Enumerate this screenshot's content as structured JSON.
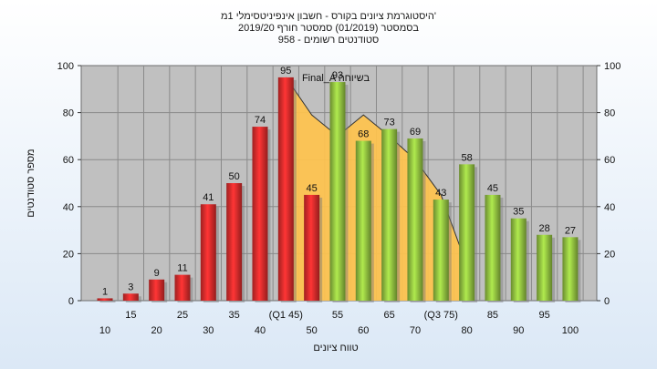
{
  "chart_data": {
    "type": "bar",
    "title_lines": [
      "היסטוגרמת ציונים בקורס - חשבון אינפיניטסימלי 1מ'",
      "בסמסטר  (01/2019)  סמסטר חורף 2019/20",
      "958 - סטודנטים רשומים"
    ],
    "ylabel": "מספר סטודנטים",
    "xlabel": "טווח ציונים",
    "ylim": [
      0,
      100
    ],
    "y_ticks": [
      0,
      20,
      40,
      60,
      80,
      100
    ],
    "grid": true,
    "categories": [
      "10",
      "15",
      "20",
      "25",
      "30",
      "35",
      "40",
      "(Q1 45)",
      "50",
      "55",
      "60",
      "65",
      "70",
      "(Q3 75)",
      "80",
      "85",
      "90",
      "95",
      "100"
    ],
    "values": [
      1,
      3,
      9,
      11,
      41,
      50,
      74,
      95,
      45,
      93,
      68,
      73,
      69,
      43,
      58,
      45,
      35,
      28,
      27
    ],
    "bar_colors": [
      "#d42a2a",
      "#d42a2a",
      "#d42a2a",
      "#d42a2a",
      "#d42a2a",
      "#d42a2a",
      "#d42a2a",
      "#d42a2a",
      "#d42a2a",
      "#8dbb3e",
      "#8dbb3e",
      "#8dbb3e",
      "#8dbb3e",
      "#8dbb3e",
      "#8dbb3e",
      "#8dbb3e",
      "#8dbb3e",
      "#8dbb3e",
      "#8dbb3e"
    ],
    "overlay": {
      "label": "Final_A בשיוחה",
      "color": "#ffc34d",
      "points": [
        [
          7,
          95
        ],
        [
          8,
          79
        ],
        [
          9,
          70
        ],
        [
          10,
          79
        ],
        [
          11,
          70
        ],
        [
          12,
          60
        ],
        [
          13,
          45
        ],
        [
          14,
          15
        ]
      ]
    }
  }
}
